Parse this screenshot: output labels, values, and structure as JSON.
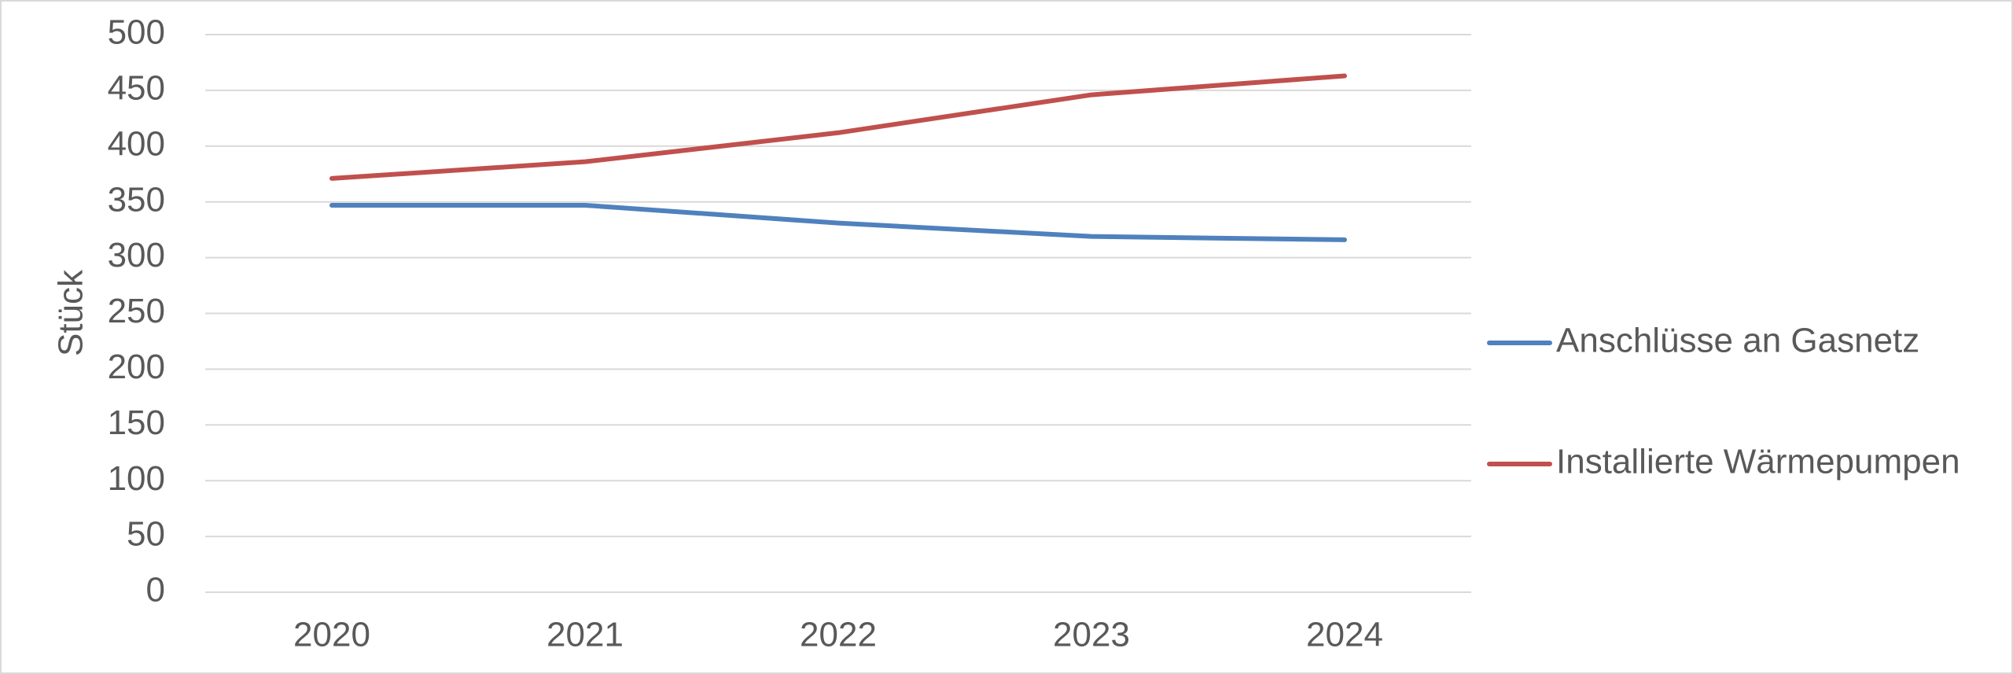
{
  "chart_data": {
    "type": "line",
    "y_label": "Stück",
    "categories": [
      "2020",
      "2021",
      "2022",
      "2023",
      "2024"
    ],
    "series": [
      {
        "name": "Anschlüsse an Gasnetz",
        "color": "#4f81bd",
        "values": [
          347,
          347,
          331,
          319,
          316
        ]
      },
      {
        "name": "Installierte Wärmepumpen",
        "color": "#c0504d",
        "values": [
          371,
          386,
          412,
          446,
          463
        ]
      }
    ],
    "ylim": [
      0,
      500
    ],
    "yticks": [
      0,
      50,
      100,
      150,
      200,
      250,
      300,
      350,
      400,
      450,
      500
    ],
    "grid": true,
    "legend": "right"
  }
}
